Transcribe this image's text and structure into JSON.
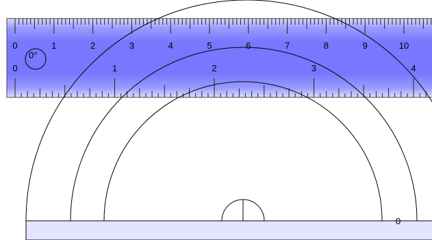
{
  "colors": {
    "ruler_fill": "#7777ff",
    "ruler_fill_light": "#d6d6ff",
    "protractor_base": "#e4e4ff",
    "stroke": "#000000"
  },
  "ruler": {
    "rotation_label": "0°",
    "cm_scale_labels": [
      "0",
      "1",
      "2",
      "3",
      "4",
      "5",
      "6",
      "7",
      "8",
      "9",
      "10"
    ],
    "inch_scale_labels": [
      "0",
      "1",
      "2",
      "3",
      "4"
    ]
  },
  "protractor": {
    "zero_label": "0"
  }
}
